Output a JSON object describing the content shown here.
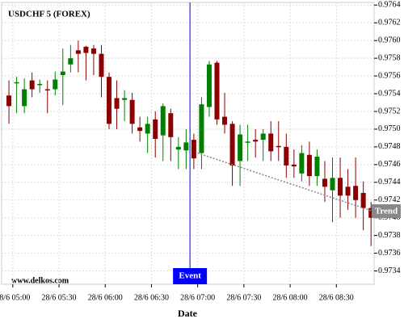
{
  "chart_data": {
    "type": "candlestick",
    "title": "USDCHF 5 (FOREX)",
    "xlabel": "Date",
    "watermark": "www.delkos.com",
    "up_color": "#008000",
    "down_color": "#8b0000",
    "grid": true,
    "open": [
      0.97538,
      0.97552,
      0.97526,
      0.97555,
      0.9755,
      0.97545,
      0.97545,
      0.97561,
      0.97573,
      0.97589,
      0.97593,
      0.97591,
      0.97585,
      0.97559,
      0.97535,
      0.97533,
      0.97533,
      0.97502,
      0.97495,
      0.97511,
      0.97493,
      0.97518,
      0.97477,
      0.97476,
      0.97488,
      0.97473,
      0.97525,
      0.97575,
      0.97514,
      0.97506,
      0.97464,
      0.97485,
      0.97488,
      0.97488,
      0.97495,
      0.97481,
      0.9748,
      0.9746,
      0.9745,
      0.97471,
      0.97447,
      0.97444,
      0.97431,
      0.97445,
      0.97435,
      0.97436,
      0.97428,
      0.97411
    ],
    "high": [
      0.97555,
      0.97559,
      0.97557,
      0.97564,
      0.97556,
      0.97555,
      0.97565,
      0.97591,
      0.97595,
      0.976,
      0.97594,
      0.97595,
      0.97595,
      0.97564,
      0.97555,
      0.97544,
      0.97541,
      0.97514,
      0.97514,
      0.9752,
      0.97529,
      0.97523,
      0.97491,
      0.975,
      0.97495,
      0.97536,
      0.97577,
      0.97577,
      0.97541,
      0.97509,
      0.97505,
      0.97505,
      0.975,
      0.975,
      0.97509,
      0.97509,
      0.97495,
      0.97477,
      0.97482,
      0.97486,
      0.97477,
      0.97464,
      0.97468,
      0.97468,
      0.97455,
      0.97468,
      0.97441,
      0.97418
    ],
    "low": [
      0.97506,
      0.97518,
      0.97518,
      0.97536,
      0.97541,
      0.97518,
      0.97538,
      0.97527,
      0.97564,
      0.97564,
      0.97555,
      0.97561,
      0.97536,
      0.975,
      0.975,
      0.97509,
      0.97495,
      0.97486,
      0.97473,
      0.97468,
      0.97464,
      0.97464,
      0.97455,
      0.97455,
      0.97455,
      0.97455,
      0.97514,
      0.97505,
      0.97495,
      0.97436,
      0.97436,
      0.97464,
      0.97468,
      0.97464,
      0.97464,
      0.97464,
      0.97445,
      0.97445,
      0.97441,
      0.97436,
      0.97436,
      0.97418,
      0.97395,
      0.974,
      0.97409,
      0.974,
      0.97386,
      0.97368
    ],
    "close": [
      0.97526,
      0.97553,
      0.97545,
      0.97545,
      0.97551,
      0.97544,
      0.97556,
      0.97565,
      0.9758,
      0.97585,
      0.97586,
      0.97585,
      0.97559,
      0.97506,
      0.97523,
      0.97535,
      0.97506,
      0.97498,
      0.97506,
      0.97489,
      0.97526,
      0.97491,
      0.9748,
      0.97485,
      0.97467,
      0.97528,
      0.97573,
      0.97511,
      0.97505,
      0.97459,
      0.97494,
      0.97486,
      0.97486,
      0.97495,
      0.97475,
      0.9748,
      0.97459,
      0.97458,
      0.97473,
      0.97447,
      0.97469,
      0.97435,
      0.97445,
      0.97425,
      0.97425,
      0.9742,
      0.97411,
      0.974
    ],
    "xlim": [
      -0.95,
      47.4
    ],
    "xticks": [
      {
        "value": 0.5,
        "label": "28/6 05:00"
      },
      {
        "value": 6.5,
        "label": "28/6 05:30"
      },
      {
        "value": 12.5,
        "label": "28/6 06:00"
      },
      {
        "value": 18.5,
        "label": "28/6 06:30"
      },
      {
        "value": 24.5,
        "label": "28/6 07:00"
      },
      {
        "value": 30.5,
        "label": "28/6 07:30"
      },
      {
        "value": 36.5,
        "label": "28/6 08:00"
      },
      {
        "value": 42.5,
        "label": "28/6 08:30"
      }
    ],
    "ylim": [
      0.97325,
      0.97643
    ],
    "yticks": [
      0.9764,
      0.9762,
      {
        "value": 0.976,
        "label": "0.9760"
      },
      0.9758,
      0.9756,
      0.9754,
      0.9752,
      {
        "value": 0.975,
        "label": "0.9750"
      },
      0.9748,
      0.9746,
      0.9744,
      0.9742,
      {
        "value": 0.974,
        "label": "0.9740"
      },
      0.9738,
      0.9736,
      0.9734
    ],
    "event": {
      "x": 23.5,
      "label": "Event",
      "color": "#0000ff"
    },
    "trend": {
      "label": "Trend",
      "x": [
        24.5,
        47.4
      ],
      "values": [
        0.97473,
        0.97407
      ],
      "color": "#888888"
    }
  }
}
